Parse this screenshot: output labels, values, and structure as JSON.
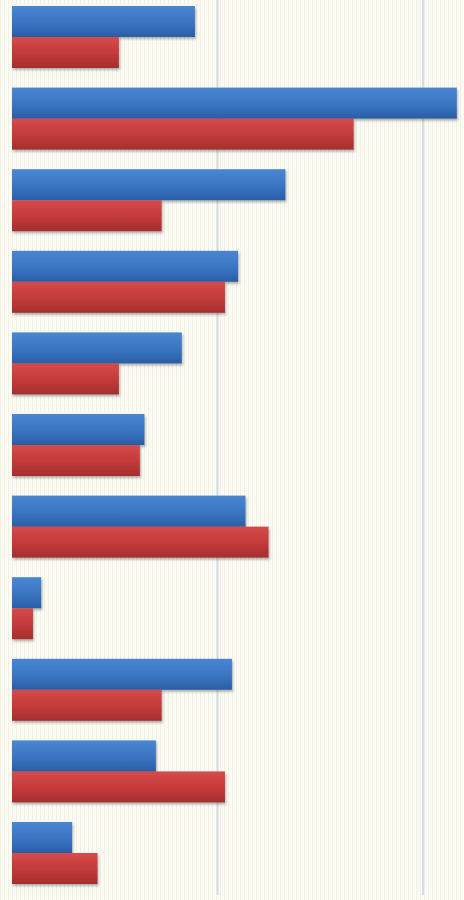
{
  "chart_data": {
    "type": "bar",
    "orientation": "horizontal",
    "categories": [
      "",
      "",
      "",
      "",
      "",
      "",
      "",
      "",
      "",
      "",
      ""
    ],
    "xlim": [
      0,
      108
    ],
    "grid": true,
    "legend": "none",
    "series": [
      {
        "color": "#3a74c0",
        "values": [
          44.5,
          108.2,
          66.5,
          55.0,
          41.3,
          32.2,
          56.8,
          7.1,
          53.5,
          35.0,
          14.6
        ]
      },
      {
        "color": "#c23a3a",
        "values": [
          26.0,
          83.1,
          36.4,
          51.8,
          26.0,
          31.1,
          62.4,
          5.1,
          36.4,
          51.8,
          20.8
        ]
      }
    ]
  }
}
